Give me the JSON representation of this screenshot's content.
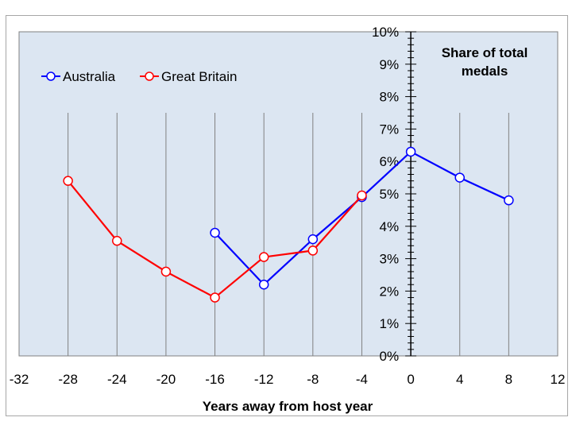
{
  "chart_data": {
    "type": "line",
    "title": "",
    "annotation_lines": [
      "Share of total",
      "medals"
    ],
    "xlabel": "Years away from host year",
    "ylabel": "",
    "x_ticks": [
      -32,
      -28,
      -24,
      -20,
      -16,
      -12,
      -8,
      -4,
      0,
      4,
      8,
      12
    ],
    "y_ticks": [
      "0%",
      "1%",
      "2%",
      "3%",
      "4%",
      "5%",
      "6%",
      "7%",
      "8%",
      "9%",
      "10%"
    ],
    "xlim": [
      -32,
      12
    ],
    "ylim": [
      0,
      10
    ],
    "grid": "vertical",
    "legend_position": "top-left",
    "colors": {
      "plot_background": "#dce6f2",
      "grid": "#808080"
    },
    "series": [
      {
        "name": "Australia",
        "color": "#0000ff",
        "x": [
          -16,
          -12,
          -8,
          -4,
          0,
          4,
          8
        ],
        "y": [
          3.8,
          2.2,
          3.6,
          4.9,
          6.3,
          5.5,
          4.8
        ]
      },
      {
        "name": "Great Britain",
        "color": "#ff0000",
        "x": [
          -28,
          -24,
          -20,
          -16,
          -12,
          -8,
          -4
        ],
        "y": [
          5.4,
          3.55,
          2.6,
          1.8,
          3.05,
          3.25,
          4.95
        ]
      }
    ]
  }
}
